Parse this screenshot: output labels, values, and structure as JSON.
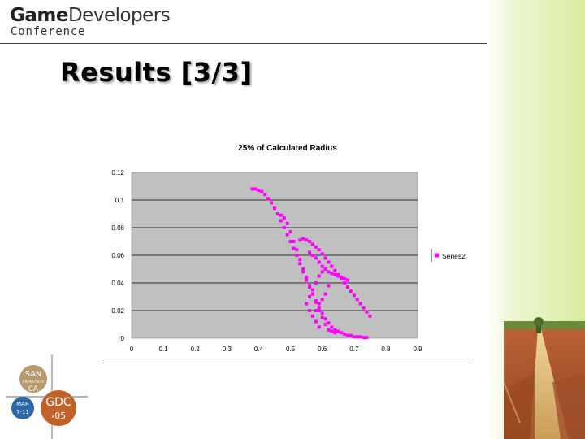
{
  "header": {
    "logo_word_game": "Game",
    "logo_word_developers": "Developers",
    "logo_conference": "Conference"
  },
  "slide": {
    "title": "Results [3/3]"
  },
  "badge": {
    "city_line1": "SAN",
    "city_line2": "FRANCISCO",
    "city_line3": "CA",
    "month": "MAR",
    "dates": "7-11",
    "event": "GDC",
    "year": "›05"
  },
  "colors": {
    "marker": "#ff00ff",
    "plot_bg": "#c0c0c0",
    "badge_tan": "#b79a6b",
    "badge_blue": "#2a68a8",
    "badge_orange": "#c0622a"
  },
  "chart_data": {
    "type": "scatter",
    "title": "25% of Calculated Radius",
    "xlabel": "",
    "ylabel": "",
    "xlim": [
      0,
      0.9
    ],
    "ylim": [
      0,
      0.12
    ],
    "x_ticks": [
      "0",
      "0.1",
      "0.2",
      "0.3",
      "0.4",
      "0.5",
      "0.6",
      "0.7",
      "0.8",
      "0.9"
    ],
    "y_ticks": [
      "0",
      "0.02",
      "0.04",
      "0.06",
      "0.08",
      "0.1",
      "0.12"
    ],
    "grid": "horizontal",
    "legend_position": "right",
    "series": [
      {
        "name": "Series2",
        "color": "#ff00ff",
        "points": [
          [
            0.38,
            0.108
          ],
          [
            0.39,
            0.108
          ],
          [
            0.4,
            0.107
          ],
          [
            0.41,
            0.106
          ],
          [
            0.42,
            0.104
          ],
          [
            0.43,
            0.101
          ],
          [
            0.44,
            0.098
          ],
          [
            0.45,
            0.094
          ],
          [
            0.46,
            0.09
          ],
          [
            0.47,
            0.085
          ],
          [
            0.48,
            0.08
          ],
          [
            0.49,
            0.075
          ],
          [
            0.5,
            0.07
          ],
          [
            0.51,
            0.065
          ],
          [
            0.52,
            0.06
          ],
          [
            0.53,
            0.054
          ],
          [
            0.54,
            0.048
          ],
          [
            0.55,
            0.042
          ],
          [
            0.56,
            0.037
          ],
          [
            0.57,
            0.032
          ],
          [
            0.58,
            0.027
          ],
          [
            0.59,
            0.022
          ],
          [
            0.6,
            0.018
          ],
          [
            0.61,
            0.014
          ],
          [
            0.62,
            0.011
          ],
          [
            0.63,
            0.008
          ],
          [
            0.64,
            0.006
          ],
          [
            0.65,
            0.005
          ],
          [
            0.66,
            0.004
          ],
          [
            0.67,
            0.003
          ],
          [
            0.68,
            0.002
          ],
          [
            0.69,
            0.002
          ],
          [
            0.7,
            0.001
          ],
          [
            0.71,
            0.001
          ],
          [
            0.72,
            0.001
          ],
          [
            0.73,
            0.0005
          ],
          [
            0.74,
            0.0005
          ],
          [
            0.47,
            0.089
          ],
          [
            0.48,
            0.087
          ],
          [
            0.49,
            0.083
          ],
          [
            0.5,
            0.077
          ],
          [
            0.51,
            0.07
          ],
          [
            0.52,
            0.064
          ],
          [
            0.53,
            0.057
          ],
          [
            0.54,
            0.05
          ],
          [
            0.55,
            0.044
          ],
          [
            0.56,
            0.038
          ],
          [
            0.57,
            0.032
          ],
          [
            0.58,
            0.026
          ],
          [
            0.59,
            0.02
          ],
          [
            0.6,
            0.015
          ],
          [
            0.61,
            0.01
          ],
          [
            0.53,
            0.071
          ],
          [
            0.54,
            0.072
          ],
          [
            0.55,
            0.071
          ],
          [
            0.56,
            0.07
          ],
          [
            0.57,
            0.068
          ],
          [
            0.58,
            0.066
          ],
          [
            0.59,
            0.064
          ],
          [
            0.6,
            0.061
          ],
          [
            0.61,
            0.058
          ],
          [
            0.62,
            0.055
          ],
          [
            0.63,
            0.052
          ],
          [
            0.64,
            0.049
          ],
          [
            0.65,
            0.046
          ],
          [
            0.66,
            0.043
          ],
          [
            0.67,
            0.04
          ],
          [
            0.68,
            0.037
          ],
          [
            0.69,
            0.034
          ],
          [
            0.7,
            0.031
          ],
          [
            0.71,
            0.028
          ],
          [
            0.72,
            0.025
          ],
          [
            0.73,
            0.022
          ],
          [
            0.74,
            0.019
          ],
          [
            0.75,
            0.016
          ],
          [
            0.56,
            0.062
          ],
          [
            0.57,
            0.06
          ],
          [
            0.58,
            0.058
          ],
          [
            0.59,
            0.055
          ],
          [
            0.6,
            0.052
          ],
          [
            0.61,
            0.05
          ],
          [
            0.62,
            0.048
          ],
          [
            0.63,
            0.047
          ],
          [
            0.64,
            0.046
          ],
          [
            0.65,
            0.045
          ],
          [
            0.66,
            0.044
          ],
          [
            0.67,
            0.043
          ],
          [
            0.68,
            0.042
          ],
          [
            0.56,
            0.03
          ],
          [
            0.57,
            0.035
          ],
          [
            0.58,
            0.04
          ],
          [
            0.59,
            0.045
          ],
          [
            0.6,
            0.048
          ],
          [
            0.58,
            0.02
          ],
          [
            0.59,
            0.025
          ],
          [
            0.6,
            0.028
          ],
          [
            0.61,
            0.032
          ],
          [
            0.62,
            0.038
          ],
          [
            0.55,
            0.025
          ],
          [
            0.56,
            0.02
          ],
          [
            0.57,
            0.016
          ],
          [
            0.58,
            0.012
          ],
          [
            0.59,
            0.008
          ],
          [
            0.62,
            0.006
          ],
          [
            0.63,
            0.005
          ],
          [
            0.64,
            0.004
          ]
        ]
      }
    ]
  }
}
